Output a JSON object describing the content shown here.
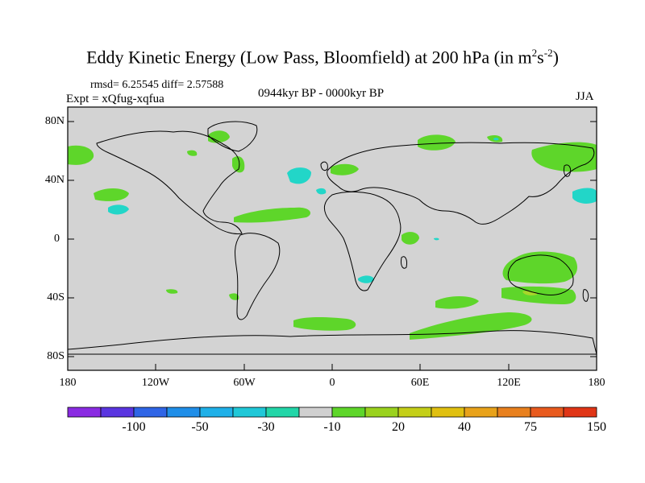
{
  "title": {
    "main": "Eddy Kinetic Energy (Low Pass, Bloomfield) at 200 hPa (in m",
    "sup1": "2",
    "mid": "s",
    "sup2": "-2",
    "end": ")"
  },
  "stats": {
    "rmsd": "rmsd= 6.25545 diff= 2.57588"
  },
  "experiment": "Expt = xQfug-xqfua",
  "period": "0944kyr BP - 0000kyr BP",
  "season": "JJA",
  "axes": {
    "lat_ticks": [
      "80N",
      "40N",
      "0",
      "40S",
      "80S"
    ],
    "lon_ticks": [
      "180",
      "120W",
      "60W",
      "0",
      "60E",
      "120E",
      "180"
    ]
  },
  "colorbar": {
    "labels": [
      "-100",
      "-50",
      "-30",
      "-10",
      "20",
      "40",
      "75",
      "150"
    ],
    "colors": [
      "#8a2be2",
      "#5a35e0",
      "#2f65e6",
      "#1f8ee8",
      "#1fb0e8",
      "#20c8d8",
      "#22d6a8",
      "#d0d0d0",
      "#5ed62a",
      "#9ad21e",
      "#c4cf18",
      "#e0c010",
      "#e8a21a",
      "#e8801e",
      "#e85a1e",
      "#e03516"
    ]
  },
  "palette": {
    "land_ocean_fill": "#d3d3d3",
    "positive": "#5ed62a",
    "negative": "#22d6c8",
    "positive_high": "#a8d62a",
    "outline": "#000000"
  }
}
